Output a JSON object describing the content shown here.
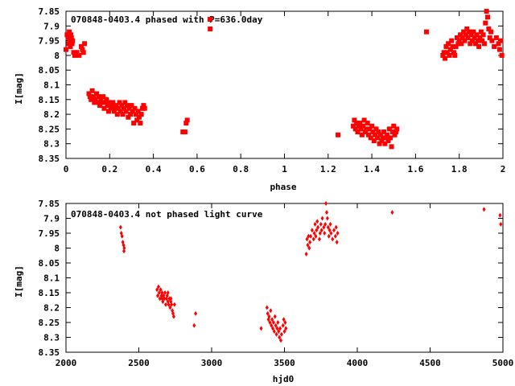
{
  "chart_data": [
    {
      "type": "scatter",
      "title": "070848-0403.4 phased with P=636.0day",
      "xlabel": "phase",
      "ylabel": "I[mag]",
      "xlim": [
        0,
        2
      ],
      "ylim": [
        7.85,
        8.35
      ],
      "y_inverted": true,
      "grid": false,
      "marker_color": "#ff0000",
      "marker_size": "large",
      "legend_marker": true,
      "x_ticks": [
        {
          "v": 0,
          "label": "0"
        },
        {
          "v": 0.2,
          "label": "0.2"
        },
        {
          "v": 0.4,
          "label": "0.4"
        },
        {
          "v": 0.6,
          "label": "0.6"
        },
        {
          "v": 0.8,
          "label": "0.8"
        },
        {
          "v": 1,
          "label": "1"
        },
        {
          "v": 1.2,
          "label": "1.2"
        },
        {
          "v": 1.4,
          "label": "1.4"
        },
        {
          "v": 1.6,
          "label": "1.6"
        },
        {
          "v": 1.8,
          "label": "1.8"
        },
        {
          "v": 2,
          "label": "2"
        }
      ],
      "y_ticks": [
        {
          "v": 7.85,
          "label": "7.85"
        },
        {
          "v": 7.9,
          "label": "7.9"
        },
        {
          "v": 7.95,
          "label": "7.95"
        },
        {
          "v": 8.0,
          "label": "8"
        },
        {
          "v": 8.05,
          "label": "8.05"
        },
        {
          "v": 8.1,
          "label": "8.1"
        },
        {
          "v": 8.15,
          "label": "8.15"
        },
        {
          "v": 8.2,
          "label": "8.2"
        },
        {
          "v": 8.25,
          "label": "8.25"
        },
        {
          "v": 8.3,
          "label": "8.3"
        },
        {
          "v": 8.35,
          "label": "8.35"
        }
      ],
      "points": [
        [
          0.0,
          7.98
        ],
        [
          0.005,
          7.93
        ],
        [
          0.01,
          7.94
        ],
        [
          0.012,
          7.96
        ],
        [
          0.015,
          7.92
        ],
        [
          0.018,
          7.95
        ],
        [
          0.02,
          7.97
        ],
        [
          0.022,
          7.93
        ],
        [
          0.025,
          7.94
        ],
        [
          0.028,
          7.96
        ],
        [
          0.03,
          7.95
        ],
        [
          0.035,
          7.99
        ],
        [
          0.04,
          8.0
        ],
        [
          0.05,
          7.99
        ],
        [
          0.06,
          8.0
        ],
        [
          0.07,
          7.97
        ],
        [
          0.075,
          7.98
        ],
        [
          0.08,
          7.99
        ],
        [
          0.085,
          7.96
        ],
        [
          0.105,
          8.13
        ],
        [
          0.11,
          8.14
        ],
        [
          0.115,
          8.15
        ],
        [
          0.12,
          8.12
        ],
        [
          0.125,
          8.14
        ],
        [
          0.13,
          8.16
        ],
        [
          0.135,
          8.15
        ],
        [
          0.14,
          8.13
        ],
        [
          0.145,
          8.16
        ],
        [
          0.15,
          8.14
        ],
        [
          0.155,
          8.17
        ],
        [
          0.16,
          8.15
        ],
        [
          0.165,
          8.16
        ],
        [
          0.17,
          8.14
        ],
        [
          0.175,
          8.18
        ],
        [
          0.18,
          8.16
        ],
        [
          0.185,
          8.15
        ],
        [
          0.19,
          8.17
        ],
        [
          0.195,
          8.19
        ],
        [
          0.2,
          8.16
        ],
        [
          0.205,
          8.18
        ],
        [
          0.21,
          8.17
        ],
        [
          0.215,
          8.16
        ],
        [
          0.22,
          8.19
        ],
        [
          0.225,
          8.18
        ],
        [
          0.23,
          8.17
        ],
        [
          0.235,
          8.2
        ],
        [
          0.24,
          8.18
        ],
        [
          0.245,
          8.16
        ],
        [
          0.25,
          8.19
        ],
        [
          0.255,
          8.17
        ],
        [
          0.26,
          8.2
        ],
        [
          0.265,
          8.18
        ],
        [
          0.27,
          8.16
        ],
        [
          0.275,
          8.19
        ],
        [
          0.28,
          8.17
        ],
        [
          0.285,
          8.21
        ],
        [
          0.29,
          8.18
        ],
        [
          0.295,
          8.2
        ],
        [
          0.3,
          8.17
        ],
        [
          0.305,
          8.19
        ],
        [
          0.31,
          8.23
        ],
        [
          0.315,
          8.18
        ],
        [
          0.32,
          8.2
        ],
        [
          0.325,
          8.22
        ],
        [
          0.33,
          8.19
        ],
        [
          0.335,
          8.21
        ],
        [
          0.34,
          8.23
        ],
        [
          0.345,
          8.2
        ],
        [
          0.35,
          8.18
        ],
        [
          0.355,
          8.17
        ],
        [
          0.36,
          8.18
        ],
        [
          0.535,
          8.26
        ],
        [
          0.545,
          8.26
        ],
        [
          0.55,
          8.23
        ],
        [
          0.555,
          8.22
        ],
        [
          0.66,
          7.91
        ],
        [
          1.245,
          8.27
        ],
        [
          1.315,
          8.24
        ],
        [
          1.32,
          8.22
        ],
        [
          1.325,
          8.25
        ],
        [
          1.33,
          8.23
        ],
        [
          1.335,
          8.26
        ],
        [
          1.34,
          8.24
        ],
        [
          1.345,
          8.23
        ],
        [
          1.35,
          8.25
        ],
        [
          1.355,
          8.27
        ],
        [
          1.36,
          8.24
        ],
        [
          1.365,
          8.22
        ],
        [
          1.37,
          8.26
        ],
        [
          1.375,
          8.25
        ],
        [
          1.38,
          8.23
        ],
        [
          1.385,
          8.27
        ],
        [
          1.39,
          8.25
        ],
        [
          1.395,
          8.28
        ],
        [
          1.4,
          8.24
        ],
        [
          1.405,
          8.26
        ],
        [
          1.41,
          8.29
        ],
        [
          1.415,
          8.27
        ],
        [
          1.42,
          8.25
        ],
        [
          1.425,
          8.28
        ],
        [
          1.43,
          8.26
        ],
        [
          1.435,
          8.3
        ],
        [
          1.44,
          8.27
        ],
        [
          1.445,
          8.29
        ],
        [
          1.45,
          8.28
        ],
        [
          1.455,
          8.26
        ],
        [
          1.46,
          8.3
        ],
        [
          1.465,
          8.28
        ],
        [
          1.47,
          8.27
        ],
        [
          1.475,
          8.29
        ],
        [
          1.48,
          8.25
        ],
        [
          1.485,
          8.28
        ],
        [
          1.49,
          8.31
        ],
        [
          1.495,
          8.26
        ],
        [
          1.5,
          8.24
        ],
        [
          1.505,
          8.27
        ],
        [
          1.51,
          8.26
        ],
        [
          1.515,
          8.25
        ],
        [
          1.65,
          7.92
        ],
        [
          1.725,
          8.0
        ],
        [
          1.73,
          7.99
        ],
        [
          1.735,
          8.01
        ],
        [
          1.74,
          7.97
        ],
        [
          1.745,
          7.99
        ],
        [
          1.75,
          7.96
        ],
        [
          1.755,
          8.0
        ],
        [
          1.76,
          7.98
        ],
        [
          1.765,
          7.95
        ],
        [
          1.77,
          7.97
        ],
        [
          1.775,
          7.99
        ],
        [
          1.78,
          8.0
        ],
        [
          1.785,
          7.97
        ],
        [
          1.79,
          7.94
        ],
        [
          1.795,
          7.96
        ],
        [
          1.8,
          7.95
        ],
        [
          1.805,
          7.93
        ],
        [
          1.81,
          7.96
        ],
        [
          1.815,
          7.94
        ],
        [
          1.82,
          7.92
        ],
        [
          1.825,
          7.95
        ],
        [
          1.83,
          7.93
        ],
        [
          1.835,
          7.91
        ],
        [
          1.84,
          7.94
        ],
        [
          1.845,
          7.92
        ],
        [
          1.85,
          7.96
        ],
        [
          1.855,
          7.93
        ],
        [
          1.86,
          7.95
        ],
        [
          1.865,
          7.92
        ],
        [
          1.87,
          7.94
        ],
        [
          1.875,
          7.96
        ],
        [
          1.88,
          7.93
        ],
        [
          1.885,
          7.95
        ],
        [
          1.89,
          7.97
        ],
        [
          1.895,
          7.94
        ],
        [
          1.9,
          7.92
        ],
        [
          1.905,
          7.95
        ],
        [
          1.91,
          7.93
        ],
        [
          1.915,
          7.96
        ],
        [
          1.92,
          7.89
        ],
        [
          1.925,
          7.85
        ],
        [
          1.93,
          7.87
        ],
        [
          1.935,
          7.91
        ],
        [
          1.94,
          7.94
        ],
        [
          1.945,
          7.92
        ],
        [
          1.95,
          7.95
        ],
        [
          1.96,
          7.97
        ],
        [
          1.97,
          7.94
        ],
        [
          1.98,
          7.96
        ],
        [
          1.985,
          7.98
        ],
        [
          1.99,
          7.95
        ],
        [
          1.995,
          8.0
        ]
      ]
    },
    {
      "type": "scatter",
      "title": "070848-0403.4 not phased light curve",
      "xlabel": "hjd0",
      "ylabel": "I[mag]",
      "xlim": [
        2000,
        5000
      ],
      "ylim": [
        7.85,
        8.35
      ],
      "y_inverted": true,
      "grid": false,
      "marker_color": "#ff0000",
      "marker_size": "small",
      "x_ticks": [
        {
          "v": 2000,
          "label": "2000"
        },
        {
          "v": 2500,
          "label": "2500"
        },
        {
          "v": 3000,
          "label": "3000"
        },
        {
          "v": 3500,
          "label": "3500"
        },
        {
          "v": 4000,
          "label": "4000"
        },
        {
          "v": 4500,
          "label": "4500"
        },
        {
          "v": 5000,
          "label": "5000"
        }
      ],
      "y_ticks": [
        {
          "v": 7.85,
          "label": "7.85"
        },
        {
          "v": 7.9,
          "label": "7.9"
        },
        {
          "v": 7.95,
          "label": "7.95"
        },
        {
          "v": 8.0,
          "label": "8"
        },
        {
          "v": 8.05,
          "label": "8.05"
        },
        {
          "v": 8.1,
          "label": "8.1"
        },
        {
          "v": 8.15,
          "label": "8.15"
        },
        {
          "v": 8.2,
          "label": "8.2"
        },
        {
          "v": 8.25,
          "label": "8.25"
        },
        {
          "v": 8.3,
          "label": "8.3"
        },
        {
          "v": 8.35,
          "label": "8.35"
        }
      ],
      "points": [
        [
          2375,
          7.93
        ],
        [
          2380,
          7.95
        ],
        [
          2385,
          7.96
        ],
        [
          2390,
          7.98
        ],
        [
          2395,
          7.99
        ],
        [
          2400,
          8.0
        ],
        [
          2398,
          8.01
        ],
        [
          2625,
          8.14
        ],
        [
          2630,
          8.16
        ],
        [
          2635,
          8.13
        ],
        [
          2640,
          8.15
        ],
        [
          2645,
          8.17
        ],
        [
          2650,
          8.14
        ],
        [
          2655,
          8.16
        ],
        [
          2660,
          8.15
        ],
        [
          2665,
          8.18
        ],
        [
          2670,
          8.16
        ],
        [
          2675,
          8.17
        ],
        [
          2680,
          8.15
        ],
        [
          2685,
          8.19
        ],
        [
          2690,
          8.17
        ],
        [
          2695,
          8.16
        ],
        [
          2700,
          8.18
        ],
        [
          2705,
          8.19
        ],
        [
          2710,
          8.17
        ],
        [
          2715,
          8.2
        ],
        [
          2720,
          8.18
        ],
        [
          2725,
          8.19
        ],
        [
          2730,
          8.21
        ],
        [
          2735,
          8.22
        ],
        [
          2740,
          8.23
        ],
        [
          2745,
          8.19
        ],
        [
          2660,
          8.17
        ],
        [
          2700,
          8.15
        ],
        [
          2720,
          8.17
        ],
        [
          2880,
          8.26
        ],
        [
          2890,
          8.22
        ],
        [
          3340,
          8.27
        ],
        [
          3380,
          8.2
        ],
        [
          3385,
          8.22
        ],
        [
          3390,
          8.24
        ],
        [
          3395,
          8.23
        ],
        [
          3400,
          8.25
        ],
        [
          3405,
          8.21
        ],
        [
          3410,
          8.26
        ],
        [
          3415,
          8.24
        ],
        [
          3420,
          8.27
        ],
        [
          3425,
          8.25
        ],
        [
          3430,
          8.28
        ],
        [
          3435,
          8.23
        ],
        [
          3440,
          8.26
        ],
        [
          3445,
          8.29
        ],
        [
          3450,
          8.27
        ],
        [
          3455,
          8.25
        ],
        [
          3460,
          8.28
        ],
        [
          3465,
          8.3
        ],
        [
          3470,
          8.27
        ],
        [
          3475,
          8.31
        ],
        [
          3480,
          8.29
        ],
        [
          3490,
          8.26
        ],
        [
          3495,
          8.24
        ],
        [
          3500,
          8.28
        ],
        [
          3505,
          8.25
        ],
        [
          3510,
          8.27
        ],
        [
          3650,
          8.02
        ],
        [
          3655,
          7.97
        ],
        [
          3660,
          7.99
        ],
        [
          3665,
          7.96
        ],
        [
          3670,
          8.0
        ],
        [
          3675,
          7.98
        ],
        [
          3680,
          7.96
        ],
        [
          3690,
          7.94
        ],
        [
          3700,
          7.97
        ],
        [
          3705,
          7.95
        ],
        [
          3710,
          7.92
        ],
        [
          3715,
          7.96
        ],
        [
          3720,
          7.94
        ],
        [
          3725,
          7.91
        ],
        [
          3730,
          7.93
        ],
        [
          3740,
          7.97
        ],
        [
          3745,
          7.95
        ],
        [
          3750,
          7.92
        ],
        [
          3755,
          7.94
        ],
        [
          3760,
          7.9
        ],
        [
          3770,
          7.93
        ],
        [
          3775,
          7.95
        ],
        [
          3780,
          7.92
        ],
        [
          3785,
          7.85
        ],
        [
          3790,
          7.88
        ],
        [
          3795,
          7.9
        ],
        [
          3800,
          7.93
        ],
        [
          3805,
          7.96
        ],
        [
          3810,
          7.94
        ],
        [
          3815,
          7.92
        ],
        [
          3820,
          7.95
        ],
        [
          3830,
          7.97
        ],
        [
          3840,
          7.94
        ],
        [
          3850,
          7.96
        ],
        [
          3860,
          7.98
        ],
        [
          3855,
          7.93
        ],
        [
          3865,
          7.95
        ],
        [
          4240,
          7.88
        ],
        [
          4870,
          7.87
        ],
        [
          4980,
          7.89
        ],
        [
          4985,
          7.92
        ]
      ]
    }
  ]
}
